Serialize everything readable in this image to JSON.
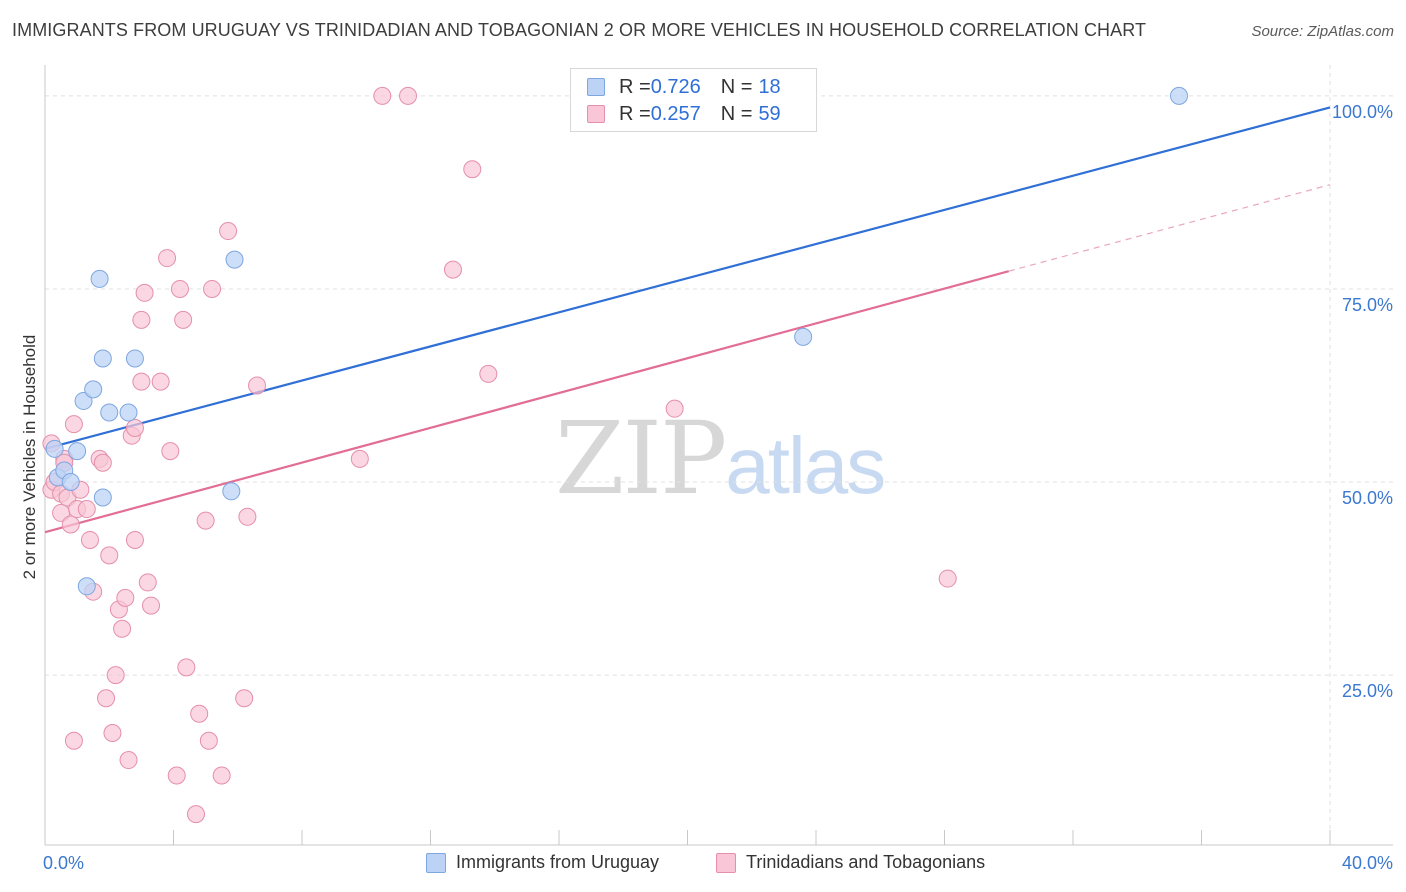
{
  "header": {
    "title": "IMMIGRANTS FROM URUGUAY VS TRINIDADIAN AND TOBAGONIAN 2 OR MORE VEHICLES IN HOUSEHOLD CORRELATION CHART",
    "source": "Source: ZipAtlas.com"
  },
  "watermark": {
    "zip": "ZIP",
    "atlas": "atlas"
  },
  "legend": {
    "items": [
      {
        "r_label": "R = ",
        "r_value": "0.726",
        "n_label": "N = ",
        "n_value": "18"
      },
      {
        "r_label": "R = ",
        "r_value": "0.257",
        "n_label": "N = ",
        "n_value": "59"
      }
    ]
  },
  "bottom_legend": {
    "series_a": "Immigrants from Uruguay",
    "series_b": "Trinidadians and Tobagonians"
  },
  "colors": {
    "blue_fill": "#bcd3f5",
    "blue_stroke": "#7ea6e0",
    "blue_line": "#2f6fd6",
    "pink_fill": "#f8c6d6",
    "pink_stroke": "#e58fab",
    "pink_line": "#e26d95",
    "axis_text": "#3b78d0",
    "grid": "#e0e0e0"
  },
  "chart_data": {
    "type": "scatter",
    "title": "IMMIGRANTS FROM URUGUAY VS TRINIDADIAN AND TOBAGONIAN 2 OR MORE VEHICLES IN HOUSEHOLD CORRELATION CHART",
    "xlabel": "",
    "ylabel": "2 or more Vehicles in Household",
    "xlim": [
      0,
      40
    ],
    "ylim": [
      3,
      104
    ],
    "x_tick_labels": {
      "left": "0.0%",
      "right": "40.0%"
    },
    "y_ticks": [
      25,
      50,
      75,
      100
    ],
    "y_tick_labels": [
      "25.0%",
      "50.0%",
      "75.0%",
      "100.0%"
    ],
    "grid": true,
    "series": [
      {
        "name": "Immigrants from Uruguay",
        "r": 0.726,
        "n": 18,
        "points": [
          [
            0.3,
            54.3
          ],
          [
            0.4,
            50.6
          ],
          [
            0.6,
            51.5
          ],
          [
            0.8,
            50.0
          ],
          [
            1.0,
            54.0
          ],
          [
            1.2,
            60.5
          ],
          [
            1.5,
            62.0
          ],
          [
            1.7,
            76.3
          ],
          [
            1.8,
            66.0
          ],
          [
            1.8,
            48.0
          ],
          [
            2.0,
            59.0
          ],
          [
            2.6,
            59.0
          ],
          [
            2.8,
            66.0
          ],
          [
            1.3,
            36.5
          ],
          [
            5.9,
            78.8
          ],
          [
            5.8,
            48.8
          ],
          [
            23.6,
            68.8
          ],
          [
            35.3,
            100.0
          ]
        ],
        "trend": {
          "x": [
            0,
            40
          ],
          "y": [
            54.3,
            98.5
          ],
          "style": "solid"
        }
      },
      {
        "name": "Trinidadians and Tobagonians",
        "r": 0.257,
        "n": 59,
        "points": [
          [
            0.2,
            55.0
          ],
          [
            0.2,
            49.0
          ],
          [
            0.3,
            50.0
          ],
          [
            0.5,
            48.5
          ],
          [
            0.6,
            53.0
          ],
          [
            0.5,
            46.0
          ],
          [
            0.7,
            48.0
          ],
          [
            0.8,
            44.5
          ],
          [
            0.9,
            57.5
          ],
          [
            1.0,
            46.5
          ],
          [
            1.1,
            49.0
          ],
          [
            1.3,
            46.5
          ],
          [
            1.4,
            42.5
          ],
          [
            1.5,
            35.8
          ],
          [
            1.7,
            53.0
          ],
          [
            1.8,
            52.5
          ],
          [
            1.9,
            22.0
          ],
          [
            2.0,
            40.5
          ],
          [
            2.1,
            17.5
          ],
          [
            2.2,
            25.0
          ],
          [
            2.3,
            33.5
          ],
          [
            2.4,
            31.0
          ],
          [
            2.5,
            35.0
          ],
          [
            2.6,
            14.0
          ],
          [
            2.7,
            56.0
          ],
          [
            2.8,
            57.0
          ],
          [
            2.8,
            42.5
          ],
          [
            3.0,
            63.0
          ],
          [
            3.0,
            71.0
          ],
          [
            3.1,
            74.5
          ],
          [
            3.2,
            37.0
          ],
          [
            3.3,
            34.0
          ],
          [
            3.6,
            63.0
          ],
          [
            3.8,
            79.0
          ],
          [
            3.9,
            54.0
          ],
          [
            4.1,
            12.0
          ],
          [
            4.2,
            75.0
          ],
          [
            4.3,
            71.0
          ],
          [
            4.4,
            26.0
          ],
          [
            4.7,
            7.0
          ],
          [
            4.8,
            20.0
          ],
          [
            5.0,
            45.0
          ],
          [
            5.1,
            16.5
          ],
          [
            5.2,
            75.0
          ],
          [
            5.5,
            12.0
          ],
          [
            5.7,
            82.5
          ],
          [
            6.2,
            22.0
          ],
          [
            6.3,
            45.5
          ],
          [
            6.6,
            62.5
          ],
          [
            9.8,
            53.0
          ],
          [
            10.5,
            100.0
          ],
          [
            11.3,
            100.0
          ],
          [
            12.7,
            77.5
          ],
          [
            13.3,
            90.5
          ],
          [
            13.8,
            64.0
          ],
          [
            19.6,
            59.5
          ],
          [
            28.1,
            37.5
          ],
          [
            0.9,
            16.5
          ],
          [
            0.6,
            52.5
          ]
        ],
        "trend": {
          "x": [
            0,
            30
          ],
          "y": [
            43.5,
            77.3
          ],
          "style": "solid"
        },
        "trend_extension": {
          "x": [
            30,
            40
          ],
          "y": [
            77.3,
            88.5
          ],
          "style": "dashed"
        }
      }
    ]
  }
}
